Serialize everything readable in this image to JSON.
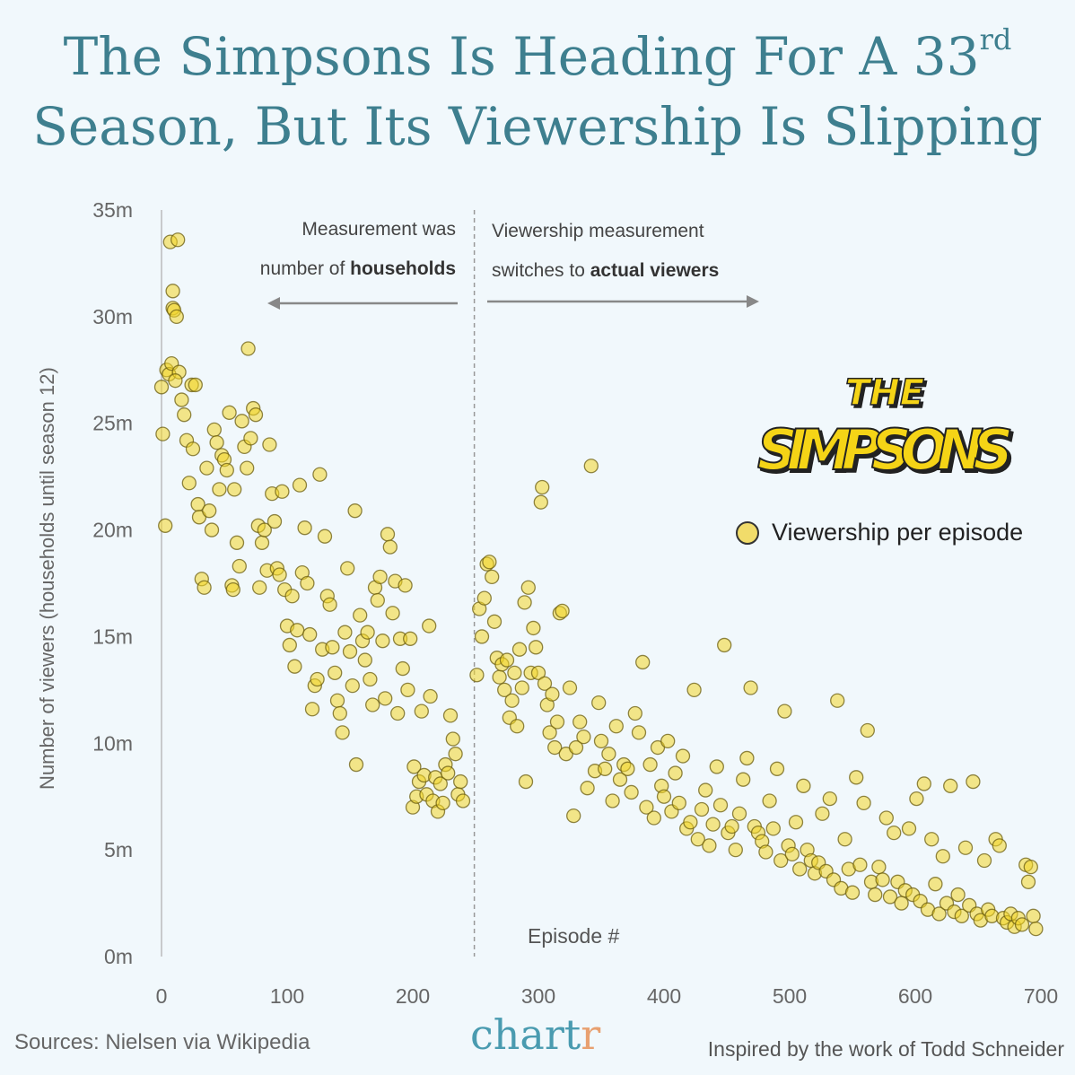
{
  "title": {
    "line1": "The Simpsons Is Heading For A 33",
    "sup": "rd",
    "line2": "Season, But Its Viewership Is Slipping"
  },
  "annotations": {
    "left_line1": "Measurement was",
    "left_line2_pre": "number of ",
    "left_line2_bold": "households",
    "right_line1": "Viewership measurement",
    "right_line2_pre": "switches to ",
    "right_line2_bold": "actual viewers"
  },
  "logo_text": "THE SIMPSONS",
  "footer": {
    "source": "Sources: Nielsen via Wikipedia",
    "brand_a": "chart",
    "brand_b": "r",
    "credit": "Inspired by the work of Todd Schneider"
  },
  "colors": {
    "point_fill": "#f3d628",
    "point_stroke": "#6b5d10",
    "title": "#3e7f8f",
    "background": "#f1f8fc"
  },
  "chart_data": {
    "type": "scatter",
    "xlabel": "Episode #",
    "ylabel": "Number of viewers (households until season 12)",
    "xlim": [
      0,
      700
    ],
    "ylim": [
      0,
      35
    ],
    "x_ticks": [
      "0",
      "100",
      "200",
      "300",
      "400",
      "500",
      "600",
      "700"
    ],
    "y_ticks": [
      "0m",
      "5m",
      "10m",
      "15m",
      "20m",
      "25m",
      "30m",
      "35m"
    ],
    "divider_episode": 249,
    "legend": {
      "label": "Viewership per episode",
      "position": "right"
    },
    "series": [
      {
        "name": "Viewership per episode",
        "points": [
          [
            0,
            26.7
          ],
          [
            1,
            24.5
          ],
          [
            3,
            20.2
          ],
          [
            4,
            27.5
          ],
          [
            6,
            27.3
          ],
          [
            7,
            33.5
          ],
          [
            9,
            31.2
          ],
          [
            9,
            30.4
          ],
          [
            10,
            30.3
          ],
          [
            12,
            30.0
          ],
          [
            8,
            27.8
          ],
          [
            13,
            33.6
          ],
          [
            14,
            27.4
          ],
          [
            11,
            27.0
          ],
          [
            16,
            26.1
          ],
          [
            18,
            25.4
          ],
          [
            20,
            24.2
          ],
          [
            22,
            22.2
          ],
          [
            24,
            26.8
          ],
          [
            25,
            23.8
          ],
          [
            27,
            26.8
          ],
          [
            29,
            21.2
          ],
          [
            30,
            20.6
          ],
          [
            32,
            17.7
          ],
          [
            34,
            17.3
          ],
          [
            36,
            22.9
          ],
          [
            38,
            20.9
          ],
          [
            40,
            20.0
          ],
          [
            42,
            24.7
          ],
          [
            44,
            24.1
          ],
          [
            46,
            21.9
          ],
          [
            48,
            23.5
          ],
          [
            50,
            23.3
          ],
          [
            52,
            22.8
          ],
          [
            54,
            25.5
          ],
          [
            56,
            17.4
          ],
          [
            57,
            17.2
          ],
          [
            58,
            21.9
          ],
          [
            60,
            19.4
          ],
          [
            62,
            18.3
          ],
          [
            64,
            25.1
          ],
          [
            66,
            23.9
          ],
          [
            68,
            22.9
          ],
          [
            69,
            28.5
          ],
          [
            71,
            24.3
          ],
          [
            73,
            25.7
          ],
          [
            75,
            25.4
          ],
          [
            77,
            20.2
          ],
          [
            78,
            17.3
          ],
          [
            80,
            19.4
          ],
          [
            82,
            20.0
          ],
          [
            84,
            18.1
          ],
          [
            86,
            24.0
          ],
          [
            88,
            21.7
          ],
          [
            90,
            20.4
          ],
          [
            92,
            18.2
          ],
          [
            94,
            17.9
          ],
          [
            96,
            21.8
          ],
          [
            98,
            17.2
          ],
          [
            100,
            15.5
          ],
          [
            102,
            14.6
          ],
          [
            104,
            16.9
          ],
          [
            106,
            13.6
          ],
          [
            108,
            15.3
          ],
          [
            110,
            22.1
          ],
          [
            112,
            18.0
          ],
          [
            114,
            20.1
          ],
          [
            116,
            17.5
          ],
          [
            118,
            15.1
          ],
          [
            120,
            11.6
          ],
          [
            122,
            12.7
          ],
          [
            124,
            13.0
          ],
          [
            126,
            22.6
          ],
          [
            128,
            14.4
          ],
          [
            130,
            19.7
          ],
          [
            132,
            16.9
          ],
          [
            134,
            16.5
          ],
          [
            136,
            14.5
          ],
          [
            138,
            13.3
          ],
          [
            140,
            12.0
          ],
          [
            142,
            11.4
          ],
          [
            144,
            10.5
          ],
          [
            146,
            15.2
          ],
          [
            148,
            18.2
          ],
          [
            150,
            14.3
          ],
          [
            152,
            12.7
          ],
          [
            154,
            20.9
          ],
          [
            155,
            9.0
          ],
          [
            158,
            16.0
          ],
          [
            160,
            14.8
          ],
          [
            162,
            13.9
          ],
          [
            164,
            15.2
          ],
          [
            166,
            13.0
          ],
          [
            168,
            11.8
          ],
          [
            170,
            17.3
          ],
          [
            172,
            16.7
          ],
          [
            174,
            17.8
          ],
          [
            176,
            14.8
          ],
          [
            178,
            12.1
          ],
          [
            180,
            19.8
          ],
          [
            182,
            19.2
          ],
          [
            184,
            16.1
          ],
          [
            186,
            17.6
          ],
          [
            188,
            11.4
          ],
          [
            190,
            14.9
          ],
          [
            192,
            13.5
          ],
          [
            194,
            17.4
          ],
          [
            196,
            12.5
          ],
          [
            198,
            14.9
          ],
          [
            200,
            7.0
          ],
          [
            201,
            8.9
          ],
          [
            203,
            7.5
          ],
          [
            205,
            8.2
          ],
          [
            207,
            11.5
          ],
          [
            209,
            8.5
          ],
          [
            211,
            7.6
          ],
          [
            213,
            15.5
          ],
          [
            214,
            12.2
          ],
          [
            216,
            7.3
          ],
          [
            218,
            8.4
          ],
          [
            220,
            6.8
          ],
          [
            222,
            8.1
          ],
          [
            224,
            7.2
          ],
          [
            226,
            9.0
          ],
          [
            228,
            8.6
          ],
          [
            230,
            11.3
          ],
          [
            232,
            10.2
          ],
          [
            234,
            9.5
          ],
          [
            236,
            7.6
          ],
          [
            238,
            8.2
          ],
          [
            240,
            7.3
          ],
          [
            251,
            13.2
          ],
          [
            253,
            16.3
          ],
          [
            255,
            15.0
          ],
          [
            257,
            16.8
          ],
          [
            259,
            18.4
          ],
          [
            261,
            18.5
          ],
          [
            263,
            17.8
          ],
          [
            265,
            15.7
          ],
          [
            267,
            14.0
          ],
          [
            269,
            13.1
          ],
          [
            271,
            13.7
          ],
          [
            273,
            12.5
          ],
          [
            275,
            13.9
          ],
          [
            277,
            11.2
          ],
          [
            279,
            12.0
          ],
          [
            281,
            13.3
          ],
          [
            283,
            10.8
          ],
          [
            285,
            14.4
          ],
          [
            287,
            12.6
          ],
          [
            289,
            16.6
          ],
          [
            290,
            8.2
          ],
          [
            292,
            17.3
          ],
          [
            294,
            13.3
          ],
          [
            296,
            15.4
          ],
          [
            298,
            14.5
          ],
          [
            300,
            13.3
          ],
          [
            302,
            21.3
          ],
          [
            303,
            22.0
          ],
          [
            305,
            12.8
          ],
          [
            307,
            11.8
          ],
          [
            309,
            10.5
          ],
          [
            311,
            12.3
          ],
          [
            313,
            9.8
          ],
          [
            315,
            11.0
          ],
          [
            317,
            16.1
          ],
          [
            319,
            16.2
          ],
          [
            322,
            9.5
          ],
          [
            325,
            12.6
          ],
          [
            328,
            6.6
          ],
          [
            330,
            9.8
          ],
          [
            333,
            11.0
          ],
          [
            336,
            10.3
          ],
          [
            339,
            7.9
          ],
          [
            342,
            23.0
          ],
          [
            345,
            8.7
          ],
          [
            348,
            11.9
          ],
          [
            350,
            10.1
          ],
          [
            353,
            8.8
          ],
          [
            356,
            9.5
          ],
          [
            359,
            7.3
          ],
          [
            362,
            10.8
          ],
          [
            365,
            8.3
          ],
          [
            368,
            9.0
          ],
          [
            371,
            8.8
          ],
          [
            374,
            7.7
          ],
          [
            377,
            11.4
          ],
          [
            380,
            10.5
          ],
          [
            383,
            13.8
          ],
          [
            386,
            7.0
          ],
          [
            389,
            9.0
          ],
          [
            392,
            6.5
          ],
          [
            395,
            9.8
          ],
          [
            398,
            8.0
          ],
          [
            400,
            7.5
          ],
          [
            403,
            10.1
          ],
          [
            406,
            6.8
          ],
          [
            409,
            8.6
          ],
          [
            412,
            7.2
          ],
          [
            415,
            9.4
          ],
          [
            418,
            6.0
          ],
          [
            421,
            6.3
          ],
          [
            424,
            12.5
          ],
          [
            427,
            5.5
          ],
          [
            430,
            6.9
          ],
          [
            433,
            7.8
          ],
          [
            436,
            5.2
          ],
          [
            439,
            6.2
          ],
          [
            442,
            8.9
          ],
          [
            445,
            7.1
          ],
          [
            448,
            14.6
          ],
          [
            451,
            5.8
          ],
          [
            454,
            6.1
          ],
          [
            457,
            5.0
          ],
          [
            460,
            6.7
          ],
          [
            463,
            8.3
          ],
          [
            466,
            9.3
          ],
          [
            469,
            12.6
          ],
          [
            472,
            6.1
          ],
          [
            475,
            5.8
          ],
          [
            478,
            5.4
          ],
          [
            481,
            4.9
          ],
          [
            484,
            7.3
          ],
          [
            487,
            6.0
          ],
          [
            490,
            8.8
          ],
          [
            493,
            4.5
          ],
          [
            496,
            11.5
          ],
          [
            499,
            5.2
          ],
          [
            502,
            4.8
          ],
          [
            505,
            6.3
          ],
          [
            508,
            4.1
          ],
          [
            511,
            8.0
          ],
          [
            514,
            5.0
          ],
          [
            517,
            4.5
          ],
          [
            520,
            3.9
          ],
          [
            523,
            4.4
          ],
          [
            526,
            6.7
          ],
          [
            529,
            4.0
          ],
          [
            532,
            7.4
          ],
          [
            535,
            3.6
          ],
          [
            538,
            12.0
          ],
          [
            541,
            3.2
          ],
          [
            544,
            5.5
          ],
          [
            547,
            4.1
          ],
          [
            550,
            3.0
          ],
          [
            553,
            8.4
          ],
          [
            556,
            4.3
          ],
          [
            559,
            7.2
          ],
          [
            562,
            10.6
          ],
          [
            565,
            3.5
          ],
          [
            568,
            2.9
          ],
          [
            571,
            4.2
          ],
          [
            574,
            3.6
          ],
          [
            577,
            6.5
          ],
          [
            580,
            2.8
          ],
          [
            583,
            5.8
          ],
          [
            586,
            3.5
          ],
          [
            589,
            2.5
          ],
          [
            592,
            3.1
          ],
          [
            595,
            6.0
          ],
          [
            598,
            2.9
          ],
          [
            601,
            7.4
          ],
          [
            604,
            2.6
          ],
          [
            607,
            8.1
          ],
          [
            610,
            2.2
          ],
          [
            613,
            5.5
          ],
          [
            616,
            3.4
          ],
          [
            619,
            2.0
          ],
          [
            622,
            4.7
          ],
          [
            625,
            2.5
          ],
          [
            628,
            8.0
          ],
          [
            631,
            2.1
          ],
          [
            634,
            2.9
          ],
          [
            637,
            1.9
          ],
          [
            640,
            5.1
          ],
          [
            643,
            2.4
          ],
          [
            646,
            8.2
          ],
          [
            649,
            2.0
          ],
          [
            652,
            1.7
          ],
          [
            655,
            4.5
          ],
          [
            658,
            2.2
          ],
          [
            661,
            1.9
          ],
          [
            664,
            5.5
          ],
          [
            667,
            5.2
          ],
          [
            670,
            1.8
          ],
          [
            673,
            1.6
          ],
          [
            676,
            2.0
          ],
          [
            679,
            1.4
          ],
          [
            682,
            1.8
          ],
          [
            685,
            1.5
          ],
          [
            688,
            4.3
          ],
          [
            690,
            3.5
          ],
          [
            692,
            4.2
          ],
          [
            694,
            1.9
          ],
          [
            696,
            1.3
          ]
        ]
      }
    ]
  }
}
